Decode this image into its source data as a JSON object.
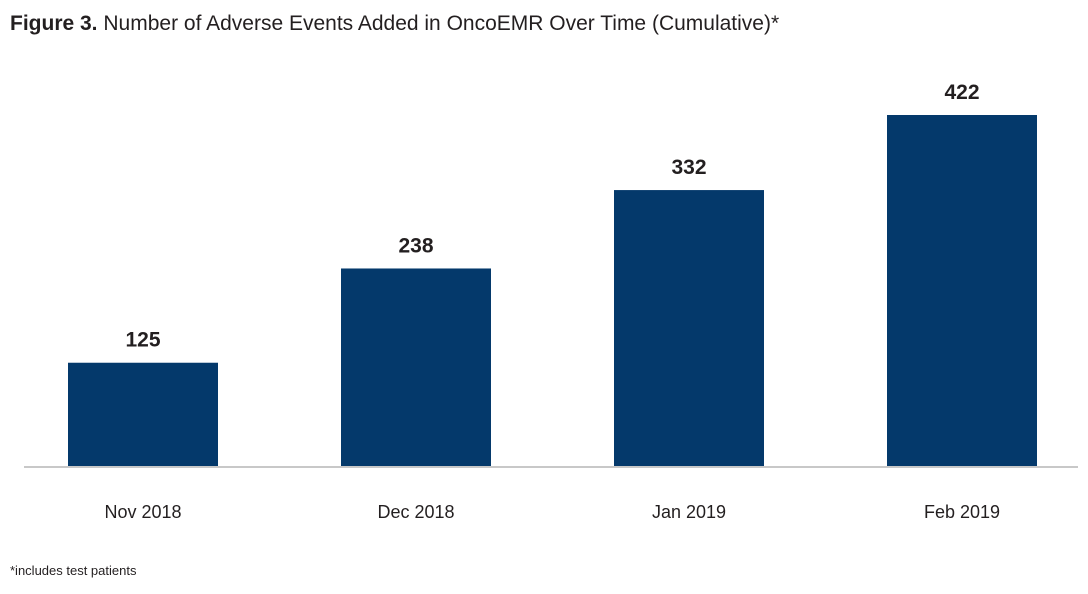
{
  "figure": {
    "label": "Figure 3.",
    "title": "Number of Adverse Events Added in OncoEMR Over Time (Cumulative)*"
  },
  "chart_data": {
    "type": "bar",
    "title": "Number of Adverse Events Added in OncoEMR Over Time (Cumulative)*",
    "xlabel": "",
    "ylabel": "",
    "categories": [
      "Nov 2018",
      "Dec 2018",
      "Jan 2019",
      "Feb 2019"
    ],
    "values": [
      125,
      238,
      332,
      422
    ],
    "value_labels": [
      "125",
      "238",
      "332",
      "422"
    ],
    "ylim": [
      0,
      422
    ],
    "grid": false,
    "legend": "none",
    "bar_color": "#04396b",
    "axis_color": "#c8c8c8"
  },
  "footnote": "*includes test patients"
}
